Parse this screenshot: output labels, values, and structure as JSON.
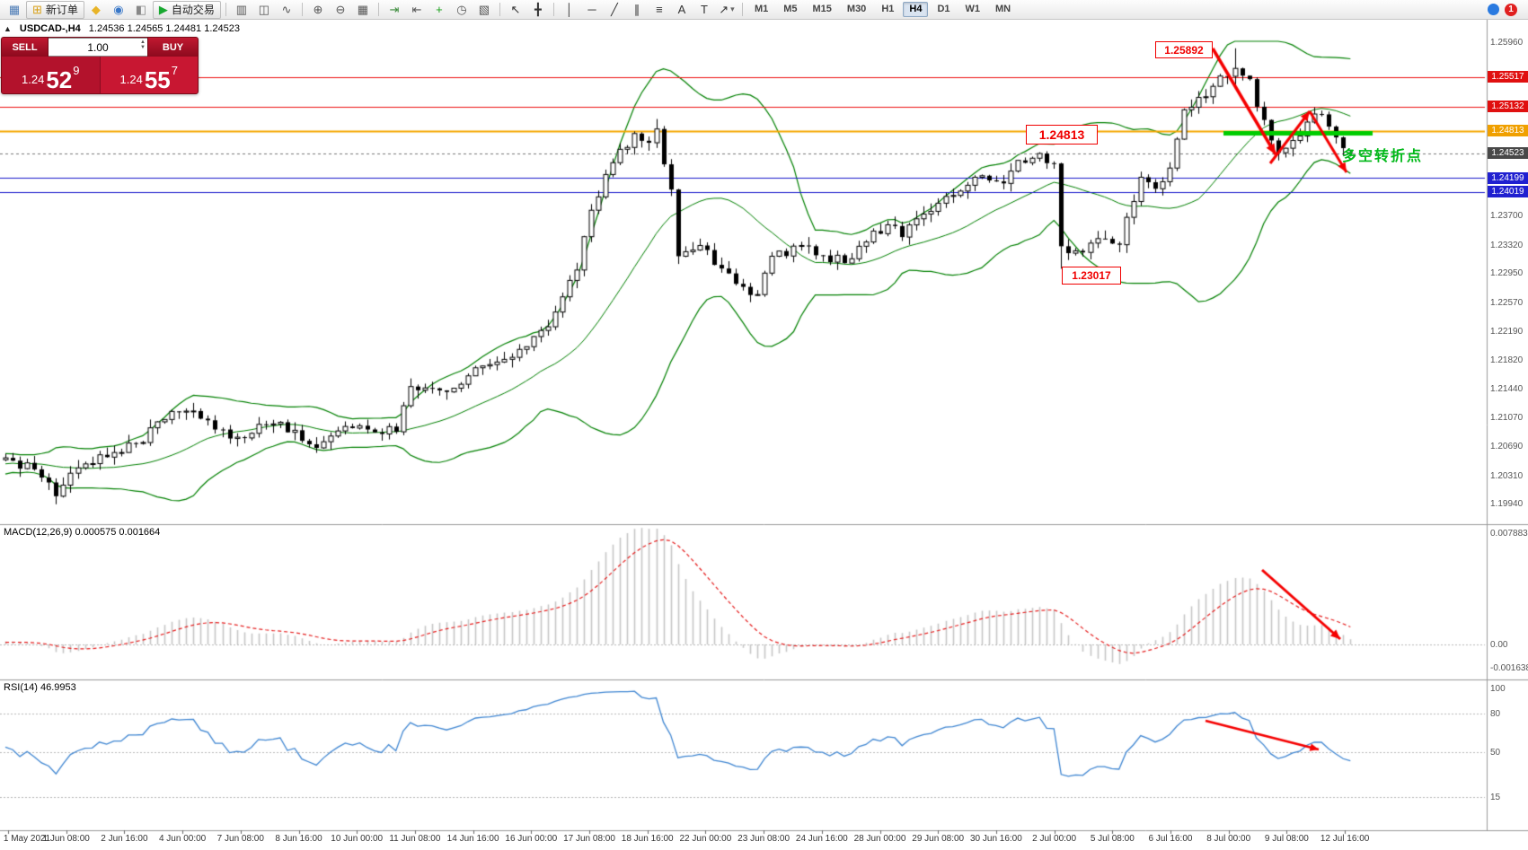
{
  "toolbar": {
    "new_order_label": "新订单",
    "autotrading_label": "自动交易",
    "timeframes": [
      "M1",
      "M5",
      "M15",
      "M30",
      "H1",
      "H4",
      "D1",
      "W1",
      "MN"
    ],
    "active_timeframe": "H4",
    "notification_count": "1",
    "items": [
      {
        "type": "icon",
        "name": "new-chart-icon",
        "glyph": "▦",
        "color": "#4a7ab5"
      },
      {
        "type": "button",
        "name": "new-order-button",
        "glyph": "⊞",
        "color": "#d8a018",
        "label": "新订单"
      },
      {
        "type": "icon",
        "name": "metaeditor-icon",
        "glyph": "◆",
        "color": "#e8b428"
      },
      {
        "type": "icon",
        "name": "market-watch-icon",
        "glyph": "◉",
        "color": "#3a78c8"
      },
      {
        "type": "icon",
        "name": "data-window-icon",
        "glyph": "◧",
        "color": "#888888"
      },
      {
        "type": "button",
        "name": "autotrading-button",
        "glyph": "▶",
        "color": "#18a830",
        "label": "自动交易"
      },
      {
        "type": "sep"
      },
      {
        "type": "icon",
        "name": "bar-chart-icon",
        "glyph": "▥",
        "color": "#555555"
      },
      {
        "type": "icon",
        "name": "candlestick-chart-icon",
        "glyph": "◫",
        "color": "#555555"
      },
      {
        "type": "icon",
        "name": "line-chart-icon",
        "glyph": "∿",
        "color": "#555555"
      },
      {
        "type": "sep"
      },
      {
        "type": "icon",
        "name": "zoom-in-icon",
        "glyph": "⊕",
        "color": "#555555"
      },
      {
        "type": "icon",
        "name": "zoom-out-icon",
        "glyph": "⊖",
        "color": "#555555"
      },
      {
        "type": "icon",
        "name": "tile-windows-icon",
        "glyph": "▦",
        "color": "#555555"
      },
      {
        "type": "sep"
      },
      {
        "type": "icon",
        "name": "auto-scroll-icon",
        "glyph": "⇥",
        "color": "#3a8a3a"
      },
      {
        "type": "icon",
        "name": "chart-shift-icon",
        "glyph": "⇤",
        "color": "#555555"
      },
      {
        "type": "icon",
        "name": "indicators-icon",
        "glyph": "+",
        "color": "#18a018"
      },
      {
        "type": "icon",
        "name": "periods-icon",
        "glyph": "◷",
        "color": "#555555"
      },
      {
        "type": "icon",
        "name": "templates-icon",
        "glyph": "▧",
        "color": "#555555"
      },
      {
        "type": "sep"
      },
      {
        "type": "icon",
        "name": "cursor-icon",
        "glyph": "↖",
        "color": "#333333"
      },
      {
        "type": "icon",
        "name": "crosshair-icon",
        "glyph": "╋",
        "color": "#333333"
      },
      {
        "type": "sep"
      },
      {
        "type": "icon",
        "name": "vertical-line-icon",
        "glyph": "│",
        "color": "#333333"
      },
      {
        "type": "icon",
        "name": "horizontal-line-icon",
        "glyph": "─",
        "color": "#333333"
      },
      {
        "type": "icon",
        "name": "trendline-icon",
        "glyph": "╱",
        "color": "#333333"
      },
      {
        "type": "icon",
        "name": "equidistant-channel-icon",
        "glyph": "∥",
        "color": "#333333"
      },
      {
        "type": "icon",
        "name": "fibonacci-icon",
        "glyph": "≡",
        "color": "#333333"
      },
      {
        "type": "icon",
        "name": "text-icon",
        "glyph": "A",
        "color": "#333333"
      },
      {
        "type": "icon",
        "name": "text-label-icon",
        "glyph": "T",
        "color": "#333333"
      },
      {
        "type": "icon",
        "name": "arrows-tool-icon",
        "glyph": "↗",
        "color": "#333333",
        "dropdown": true
      },
      {
        "type": "sep"
      }
    ]
  },
  "trade_panel": {
    "sell_label": "SELL",
    "buy_label": "BUY",
    "volume": "1.00",
    "sell_big": "1.24",
    "sell_pips": "52",
    "sell_sup": "9",
    "buy_big": "1.24",
    "buy_pips": "55",
    "buy_sup": "7",
    "icons": {
      "collapse": "▲",
      "spin_up": "▲",
      "spin_down": "▼"
    }
  },
  "chart": {
    "symbol_period": "USDCAD-,H4",
    "ohlc_line": "1.24536 1.24565 1.24481 1.24523",
    "plain_ticks": [
      "1.25960",
      "1.23700",
      "1.23320",
      "1.22950",
      "1.22570",
      "1.22190",
      "1.21820",
      "1.21440",
      "1.21070",
      "1.20690",
      "1.20310",
      "1.19940"
    ],
    "levels": [
      {
        "text": "1.25517",
        "bg": "#e01010"
      },
      {
        "text": "1.25132",
        "bg": "#e01010"
      },
      {
        "text": "1.24813",
        "bg": "#f0a000"
      },
      {
        "text": "1.24523",
        "bg": "#484848"
      },
      {
        "text": "1.24199",
        "bg": "#2020d0"
      },
      {
        "text": "1.24019",
        "bg": "#2020d0"
      }
    ],
    "annotations": {
      "high": "1.25892",
      "support": "1.24813",
      "low": "1.23017",
      "turning_text": "多空转折点",
      "green_line_color": "#00cc00",
      "arrow_color": "#f50000"
    }
  },
  "macd": {
    "label": "MACD(12,26,9) 0.000575 0.001664",
    "axis": [
      "0.007883",
      "0.00",
      "-0.001638"
    ]
  },
  "rsi": {
    "label": "RSI(14) 46.9953",
    "axis": [
      "100",
      "80",
      "50",
      "15"
    ]
  },
  "time_axis": {
    "labels": [
      "1 May 2021",
      "1 Jun 08:00",
      "2 Jun 16:00",
      "4 Jun 00:00",
      "7 Jun 08:00",
      "8 Jun 16:00",
      "10 Jun 00:00",
      "11 Jun 08:00",
      "14 Jun 16:00",
      "16 Jun 00:00",
      "17 Jun 08:00",
      "18 Jun 16:00",
      "22 Jun 00:00",
      "23 Jun 08:00",
      "24 Jun 16:00",
      "28 Jun 00:00",
      "29 Jun 08:00",
      "30 Jun 16:00",
      "2 Jul 00:00",
      "5 Jul 08:00",
      "6 Jul 16:00",
      "8 Jul 00:00",
      "9 Jul 08:00",
      "12 Jul 16:00"
    ]
  },
  "chart_data": {
    "type": "candlestick",
    "symbol": "USDCAD-",
    "timeframe": "H4",
    "last_ohlc": {
      "open": 1.24536,
      "high": 1.24565,
      "low": 1.24481,
      "close": 1.24523
    },
    "current_price": 1.24523,
    "price_axis_ticks": [
      1.2596,
      1.237,
      1.2332,
      1.2295,
      1.2257,
      1.2219,
      1.2182,
      1.2144,
      1.2107,
      1.2069,
      1.2031,
      1.1994
    ],
    "horizontal_levels": [
      {
        "price": 1.25517,
        "color": "#ee1111",
        "width": 1.2
      },
      {
        "price": 1.25132,
        "color": "#ee1111",
        "width": 1.2
      },
      {
        "price": 1.24813,
        "color": "#f5a800",
        "width": 2
      },
      {
        "price": 1.24199,
        "color": "#1818cc",
        "width": 1.2
      },
      {
        "price": 1.24019,
        "color": "#1818cc",
        "width": 1.2
      }
    ],
    "marked_extremes": {
      "swing_high": 1.25892,
      "swing_low": 1.23017,
      "support": 1.24813
    },
    "bar_count": 187,
    "close_keyframes": [
      [
        0,
        1.2055
      ],
      [
        4,
        1.204
      ],
      [
        7,
        1.2005
      ],
      [
        10,
        1.2042
      ],
      [
        15,
        1.2062
      ],
      [
        19,
        1.2075
      ],
      [
        21,
        1.2102
      ],
      [
        25,
        1.2116
      ],
      [
        29,
        1.2092
      ],
      [
        32,
        1.2082
      ],
      [
        36,
        1.2098
      ],
      [
        40,
        1.2091
      ],
      [
        43,
        1.2068
      ],
      [
        47,
        1.2096
      ],
      [
        50,
        1.2092
      ],
      [
        54,
        1.2089
      ],
      [
        56,
        1.2148
      ],
      [
        60,
        1.2143
      ],
      [
        64,
        1.2162
      ],
      [
        68,
        1.218
      ],
      [
        72,
        1.22
      ],
      [
        75,
        1.2226
      ],
      [
        79,
        1.23
      ],
      [
        81,
        1.2378
      ],
      [
        84,
        1.244
      ],
      [
        87,
        1.2478
      ],
      [
        89,
        1.2466
      ],
      [
        90,
        1.2484
      ],
      [
        92,
        1.2405
      ],
      [
        93,
        1.2318
      ],
      [
        96,
        1.2332
      ],
      [
        99,
        1.2302
      ],
      [
        101,
        1.2282
      ],
      [
        104,
        1.2268
      ],
      [
        106,
        1.2318
      ],
      [
        110,
        1.2332
      ],
      [
        113,
        1.2319
      ],
      [
        116,
        1.2309
      ],
      [
        118,
        1.2331
      ],
      [
        122,
        1.2359
      ],
      [
        124,
        1.2343
      ],
      [
        127,
        1.2373
      ],
      [
        130,
        1.2396
      ],
      [
        132,
        1.2403
      ],
      [
        135,
        1.2423
      ],
      [
        138,
        1.2413
      ],
      [
        140,
        1.2443
      ],
      [
        143,
        1.2452
      ],
      [
        145,
        1.2439
      ],
      [
        146,
        1.2331
      ],
      [
        149,
        1.2323
      ],
      [
        151,
        1.2341
      ],
      [
        154,
        1.2333
      ],
      [
        157,
        1.2421
      ],
      [
        159,
        1.2406
      ],
      [
        161,
        1.2433
      ],
      [
        163,
        1.2509
      ],
      [
        166,
        1.2526
      ],
      [
        168,
        1.2553
      ],
      [
        170,
        1.2563
      ],
      [
        172,
        1.2549
      ],
      [
        173,
        1.2513
      ],
      [
        175,
        1.2469
      ],
      [
        176,
        1.2453
      ],
      [
        178,
        1.2469
      ],
      [
        180,
        1.2493
      ],
      [
        182,
        1.2503
      ],
      [
        184,
        1.2473
      ],
      [
        185,
        1.2459
      ],
      [
        186,
        1.24523
      ]
    ],
    "overrides": {
      "7": {
        "l": 1.19945
      },
      "90": {
        "h": 1.2497
      },
      "146": {
        "l": 1.23017
      },
      "170": {
        "h": 1.25892
      },
      "186": {
        "o": 1.24536,
        "h": 1.24565,
        "l": 1.24481,
        "c": 1.24523
      }
    },
    "bollinger": {
      "period": 20,
      "deviation": 2,
      "color": "#008000"
    },
    "macd": {
      "params": [
        12,
        26,
        9
      ],
      "current_main": 0.000575,
      "current_signal": 0.001664,
      "axis_max": 0.007883,
      "axis_min": -0.001638,
      "histogram_color": "#c6c6c6",
      "signal_color": "#e62020"
    },
    "rsi": {
      "period": 14,
      "current": 46.9953,
      "levels": [
        80,
        50,
        15
      ],
      "line_color": "#3f86d2"
    }
  }
}
